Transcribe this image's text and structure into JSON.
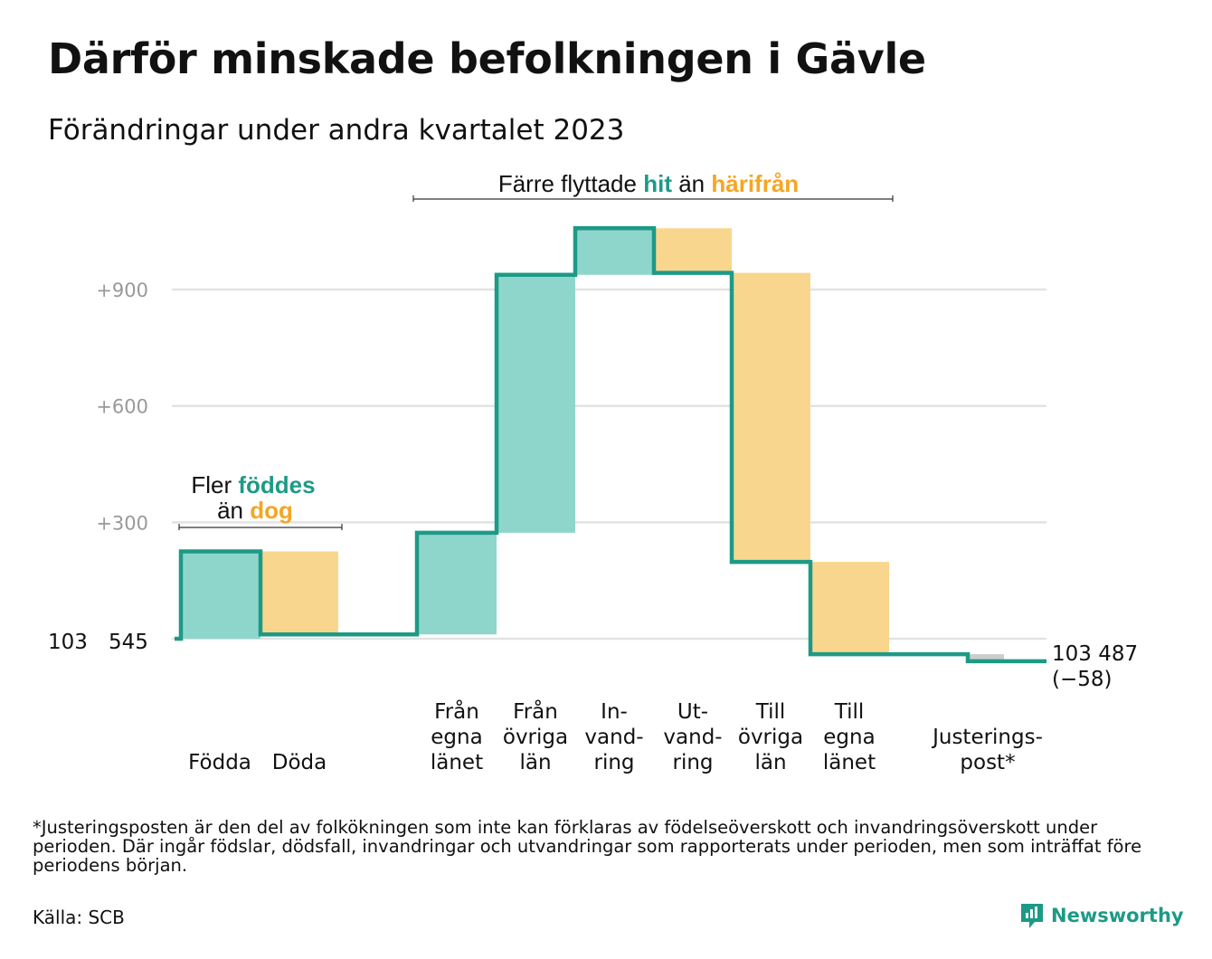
{
  "title": "Därför minskade befolkningen i Gävle",
  "subtitle": "Förändringar under andra kvartalet 2023",
  "footnote": "*Justeringsposten är den del av folkökningen som inte kan förklaras av födelseöverskott och invandringsöverskott under perioden. Där ingår födslar, dödsfall, invandringar och utvandringar som rapporterats under perioden, men som inträffat före periodens början.",
  "source": "Källa: SCB",
  "logo": {
    "name": "Newsworthy"
  },
  "colors": {
    "increase_fill": "#8ed6cc",
    "decrease_fill": "#f9d68d",
    "adjust_fill": "#cccccc",
    "line": "#1d9a86",
    "hit_text": "#1d9a86",
    "harifran_text": "#f5a623",
    "grid": "#e3e3e3",
    "tick_text": "#999999"
  },
  "annotations": {
    "births": {
      "line1_pre": "Fler ",
      "line1_em": "föddes",
      "line2_pre": "än ",
      "line2_em": "dog"
    },
    "migration": {
      "pre": "Färre flyttade ",
      "hit": "hit",
      "mid": " än ",
      "harifran": "härifrån"
    }
  },
  "start_label": {
    "part1": "103",
    "part2": "545"
  },
  "end_label": {
    "value": "103 487",
    "change": "(−58)"
  },
  "chart_data": {
    "type": "waterfall",
    "start_value": 103545,
    "end_value": 103487,
    "ylim": [
      -70,
      1075
    ],
    "yticks": [
      {
        "value": 300,
        "label": "+300"
      },
      {
        "value": 600,
        "label": "+600"
      },
      {
        "value": 900,
        "label": "+900"
      }
    ],
    "grid": true,
    "steps": [
      {
        "label": [
          "Födda"
        ],
        "change": 225,
        "kind": "increase"
      },
      {
        "label": [
          "Döda"
        ],
        "change": -214,
        "kind": "decrease"
      },
      {
        "label": [
          "Från",
          "egna",
          "länet"
        ],
        "change": 262,
        "kind": "increase"
      },
      {
        "label": [
          "Från",
          "övriga",
          "län"
        ],
        "change": 665,
        "kind": "increase"
      },
      {
        "label": [
          "In-",
          "vand-",
          "ring"
        ],
        "change": 120,
        "kind": "increase"
      },
      {
        "label": [
          "Ut-",
          "vand-",
          "ring"
        ],
        "change": -115,
        "kind": "decrease"
      },
      {
        "label": [
          "Till",
          "övriga",
          "län"
        ],
        "change": -745,
        "kind": "decrease"
      },
      {
        "label": [
          "Till",
          "egna",
          "länet"
        ],
        "change": -238,
        "kind": "decrease"
      },
      {
        "label": [
          "Justerings-",
          "post*"
        ],
        "change": -18,
        "kind": "adjustment"
      }
    ]
  }
}
